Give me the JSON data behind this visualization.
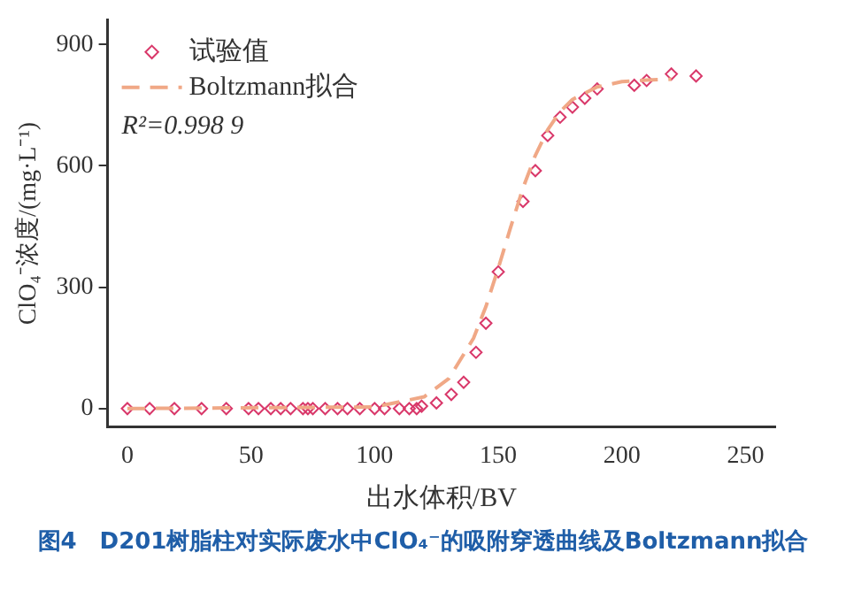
{
  "chart_data": {
    "type": "scatter",
    "title": "图4　D201树脂柱对实际废水中ClO₄⁻的吸附穿透曲线及Boltzmann拟合",
    "xlabel": "出水体积/BV",
    "ylabel": "ClO₄⁻浓度/(mg·L⁻¹)",
    "xlim": [
      -8,
      262
    ],
    "xticks": [
      0,
      50,
      100,
      150,
      200,
      250
    ],
    "ylim": [
      -45,
      960
    ],
    "yticks": [
      0,
      300,
      600,
      900
    ],
    "legend": "top left",
    "grid": false,
    "annotations": [
      "R²=0.998 9"
    ],
    "series": [
      {
        "name": "试验值",
        "marker": "diamond",
        "color": "#d9386a",
        "x": [
          0,
          9,
          19,
          30,
          40,
          49,
          53,
          58,
          62,
          66,
          71,
          73,
          75,
          80,
          85,
          89,
          94,
          100,
          104,
          110,
          114,
          117,
          119,
          125,
          131,
          136,
          141,
          145,
          150,
          160,
          165,
          170,
          175,
          180,
          185,
          190,
          205,
          210,
          220,
          230
        ],
        "values": [
          0,
          0,
          0,
          0,
          0,
          0,
          0,
          0,
          0,
          0,
          0,
          0,
          0,
          0,
          0,
          0,
          0,
          0,
          0,
          0,
          0,
          0,
          6,
          14,
          35,
          65,
          139,
          211,
          338,
          512,
          588,
          675,
          720,
          745,
          767,
          790,
          799,
          811,
          827,
          822
        ]
      },
      {
        "name": "Boltzmann拟合",
        "type": "line",
        "marker": "none",
        "line_style": "dashed",
        "color": "#f0a886",
        "x": [
          0,
          100,
          120,
          130,
          140,
          145,
          150,
          155,
          160,
          165,
          170,
          175,
          180,
          190,
          200,
          210,
          220
        ],
        "values": [
          0,
          4,
          29,
          74,
          174,
          252,
          347,
          448,
          545,
          626,
          689,
          734,
          764,
          795,
          808,
          812,
          814
        ]
      }
    ]
  }
}
